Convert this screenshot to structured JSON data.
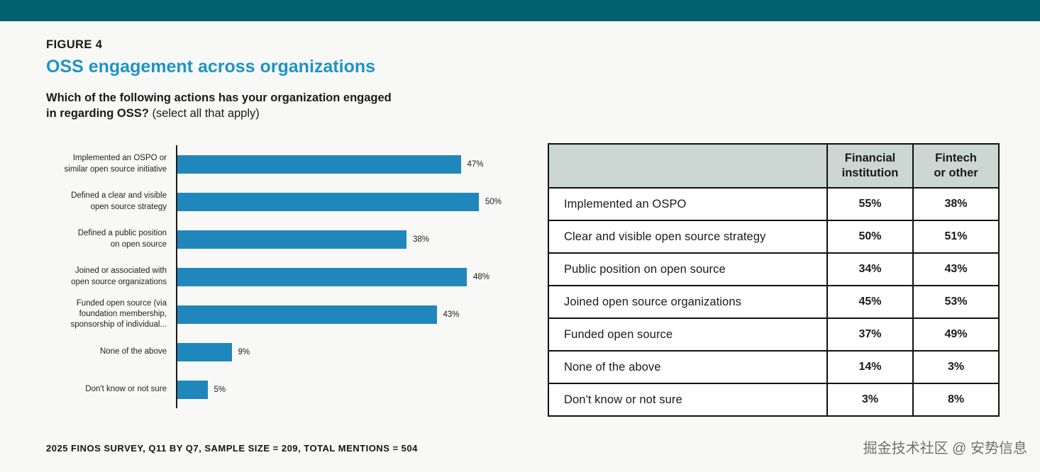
{
  "figure": {
    "label": "FIGURE 4",
    "title": "OSS engagement across organizations",
    "question_line1": "Which of the following actions has your organization engaged",
    "question_line2_bold": "in regarding OSS?",
    "question_note": "(select all that apply)",
    "footnote": "2025 FINOS SURVEY, Q11 BY Q7, SAMPLE SIZE = 209, TOTAL MENTIONS = 504",
    "watermark": "掘金技术社区 @ 安势信息"
  },
  "colors": {
    "top_bar": "#01606e",
    "title": "#1e93c8",
    "bar": "#1f87bb",
    "table_header_bg": "#ccd6d2",
    "background": "#f8f9f6"
  },
  "chart_data": [
    {
      "type": "bar",
      "orientation": "horizontal",
      "title": "OSS engagement across organizations",
      "categories": [
        "Implemented an OSPO or\nsimilar open source initiative",
        "Defined a clear and visible\nopen source strategy",
        "Defined a public position\non open source",
        "Joined or associated with\nopen source organizations",
        "Funded open source (via\nfoundation membership,\nsponsorship of individual...",
        "None of the above",
        "Don't know or not sure"
      ],
      "values": [
        47,
        50,
        38,
        48,
        43,
        9,
        5
      ],
      "value_labels": [
        "47%",
        "50%",
        "38%",
        "48%",
        "43%",
        "9%",
        "5%"
      ],
      "xlim": [
        0,
        55
      ],
      "grid": false,
      "legend": "none"
    },
    {
      "type": "table",
      "columns": [
        "",
        "Financial\ninstitution",
        "Fintech\nor other"
      ],
      "rows": [
        [
          "Implemented an OSPO",
          "55%",
          "38%"
        ],
        [
          "Clear and visible open source strategy",
          "50%",
          "51%"
        ],
        [
          "Public position on open source",
          "34%",
          "43%"
        ],
        [
          "Joined open source organizations",
          "45%",
          "53%"
        ],
        [
          "Funded open source",
          "37%",
          "49%"
        ],
        [
          "None of the above",
          "14%",
          "3%"
        ],
        [
          "Don't know or not sure",
          "3%",
          "8%"
        ]
      ]
    }
  ]
}
